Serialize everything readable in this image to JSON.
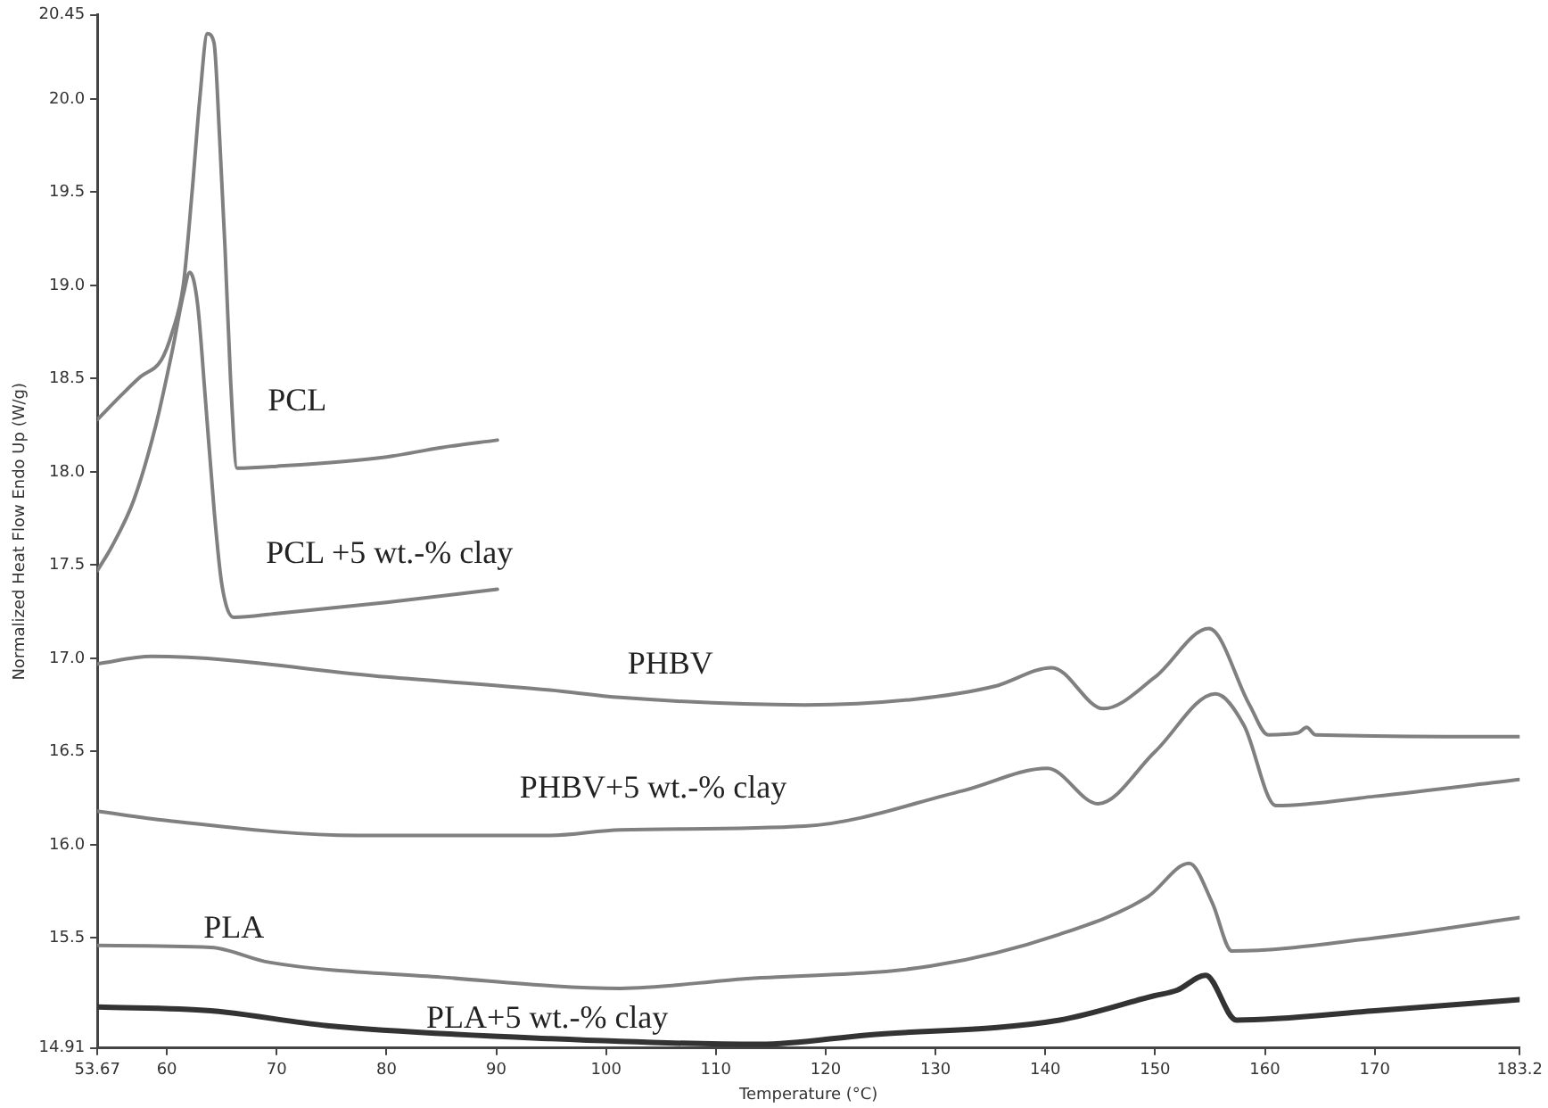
{
  "chart_data": {
    "type": "line",
    "xlabel": "Temperature (°C)",
    "ylabel": "Normalized Heat Flow Endo Up (W/g)",
    "xlim": [
      53.67,
      183.2
    ],
    "xticks": [
      53.67,
      60,
      70,
      80,
      90,
      100,
      110,
      120,
      130,
      140,
      150,
      160,
      170,
      183.2
    ],
    "ylim": [
      14.91,
      20.45
    ],
    "yticks": [
      14.91,
      15.5,
      {
        "value": 16,
        "label": "16.0"
      },
      16.5,
      {
        "value": 17,
        "label": "17.0"
      },
      17.5,
      {
        "value": 18,
        "label": "18.0"
      },
      18.5,
      {
        "value": 19,
        "label": "19.0"
      },
      19.5,
      {
        "value": 20,
        "label": "20.0"
      },
      20.45
    ],
    "grid": false,
    "legend": false,
    "marker": "none",
    "line_style": "solid",
    "series": [
      {
        "name": "PCL",
        "color": "#808080",
        "x": [
          53.67,
          56,
          57.6,
          59.5,
          60.5,
          61.5,
          62.3,
          63.0,
          63.7,
          64.3,
          64.8,
          65.3,
          65.8,
          66.4,
          70,
          80,
          85,
          90.1
        ],
        "values": [
          18.28,
          18.42,
          18.51,
          18.6,
          18.75,
          19.0,
          19.5,
          20.0,
          20.35,
          20.3,
          19.8,
          19.2,
          18.5,
          18.02,
          18.03,
          18.08,
          18.13,
          18.17
        ]
      },
      {
        "name": "PCL +5 wt.-% clay",
        "color": "#808080",
        "x": [
          53.67,
          55,
          57,
          59,
          60.5,
          61.5,
          62.1,
          62.8,
          63.5,
          64.3,
          65,
          66.1,
          70,
          80,
          90.1
        ],
        "values": [
          17.47,
          17.6,
          17.85,
          18.25,
          18.65,
          18.95,
          19.07,
          18.9,
          18.4,
          17.8,
          17.4,
          17.22,
          17.24,
          17.3,
          17.37
        ]
      },
      {
        "name": "PHBV",
        "color": "#808080",
        "x": [
          53.67,
          58.6,
          80,
          94.9,
          101.3,
          118.1,
          128,
          135.4,
          140.6,
          145.3,
          150,
          154.9,
          158.6,
          160.3,
          163,
          163.8,
          164.6,
          183.2
        ],
        "values": [
          16.97,
          17.01,
          16.9,
          16.83,
          16.79,
          16.75,
          16.78,
          16.85,
          16.95,
          16.73,
          16.9,
          17.16,
          16.75,
          16.59,
          16.6,
          16.63,
          16.59,
          16.58
        ]
      },
      {
        "name": "PHBV+5 wt.-% clay",
        "color": "#808080",
        "x": [
          53.67,
          60,
          77.3,
          94.9,
          101.3,
          118.1,
          132.5,
          140.2,
          144.8,
          150,
          155.5,
          158.1,
          161.0,
          170,
          183.2
        ],
        "values": [
          16.18,
          16.13,
          16.05,
          16.05,
          16.08,
          16.1,
          16.29,
          16.41,
          16.22,
          16.5,
          16.81,
          16.64,
          16.21,
          16.26,
          16.35
        ]
      },
      {
        "name": "PLA",
        "color": "#808080",
        "x": [
          53.67,
          64,
          69.3,
          85,
          101.3,
          112.3,
          129.6,
          141.3,
          149.3,
          153.1,
          155.2,
          157,
          170,
          183.2
        ],
        "values": [
          15.46,
          15.45,
          15.37,
          15.29,
          15.23,
          15.28,
          15.35,
          15.52,
          15.72,
          15.9,
          15.69,
          15.43,
          15.5,
          15.61
        ]
      },
      {
        "name": "PLA+5 wt.-% clay",
        "color": "#333333",
        "x": [
          53.67,
          64,
          74.6,
          95,
          114,
          123.8,
          141.3,
          149.9,
          152,
          154.6,
          157.4,
          170,
          183.2
        ],
        "values": [
          15.13,
          15.11,
          15.03,
          14.96,
          14.93,
          14.98,
          15.06,
          15.19,
          15.22,
          15.3,
          15.06,
          15.11,
          15.17
        ]
      }
    ]
  }
}
